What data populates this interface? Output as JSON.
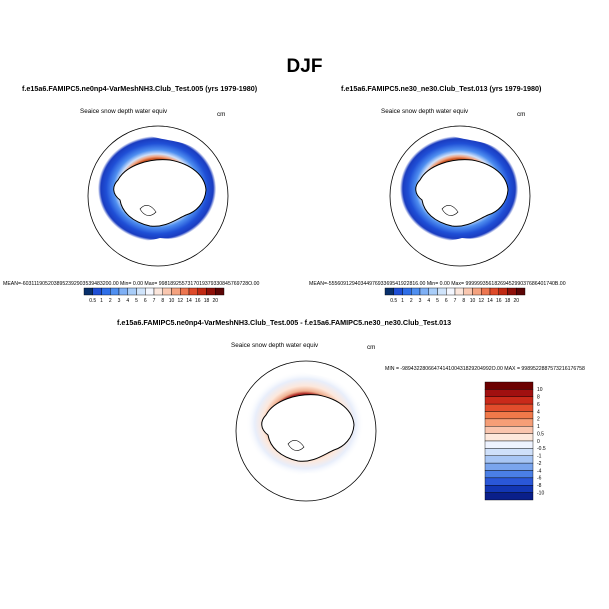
{
  "main_title": "DJF",
  "panels": [
    {
      "title": "f.e15a6.FAMIPC5.ne0np4-VarMeshNH3.Club_Test.005 (yrs 1979-1980)",
      "variable": "Seaice snow depth water equiv",
      "units": "cm",
      "stats": "MEAN=-6031119052038952392903539483200.00  Min=    0.00  Max= 9981892557317019379330845769728O.00"
    },
    {
      "title": "f.e15a6.FAMIPC5.ne30_ne30.Club_Test.013 (yrs 1979-1980)",
      "variable": "Seaice snow depth water equiv",
      "units": "cm",
      "stats": "MEAN=-5556091294034497693369541922816.00  Min=    0.00  Max= 9999993561826945299037686401740B.00"
    },
    {
      "title": "f.e15a6.FAMIPC5.ne0np4-VarMeshNH3.Club_Test.005 - f.e15a6.FAMIPC5.ne30_ne30.Club_Test.013",
      "variable": "Seaice snow depth water equiv",
      "units": "cm",
      "stats": "MIN = -9894322806647414100431829204992O.00  MAX = 9989522887573216176758"
    }
  ],
  "abs_colorbar": {
    "labels": [
      "0.5",
      "1",
      "2",
      "3",
      "4",
      "5",
      "6",
      "7",
      "8",
      "10",
      "12",
      "14",
      "16",
      "18",
      "20"
    ],
    "colors": [
      "#08306b",
      "#1f4fd6",
      "#2f6fe8",
      "#4f8ff0",
      "#7fb0f5",
      "#a9cdf8",
      "#d0e4fb",
      "#f4f7ff",
      "#fbe6dc",
      "#f9c7b0",
      "#f4a27f",
      "#ec7650",
      "#de4a2a",
      "#c12a14",
      "#8f110a",
      "#5c0606"
    ]
  },
  "diff_colorbar": {
    "labels": [
      "10",
      "8",
      "6",
      "4",
      "2",
      "1",
      "0.5",
      "0",
      "-0.5",
      "-1",
      "-2",
      "-4",
      "-6",
      "-8",
      "-10"
    ],
    "colors": [
      "#6b0000",
      "#a11010",
      "#c92a1a",
      "#e24d2c",
      "#f0794a",
      "#f59e77",
      "#f9c5ae",
      "#fde8dc",
      "#eef3ff",
      "#cfe0fa",
      "#a8c6f5",
      "#7aa5ee",
      "#4a7fe6",
      "#2a57d8",
      "#1236b4",
      "#0a1f8a"
    ]
  }
}
